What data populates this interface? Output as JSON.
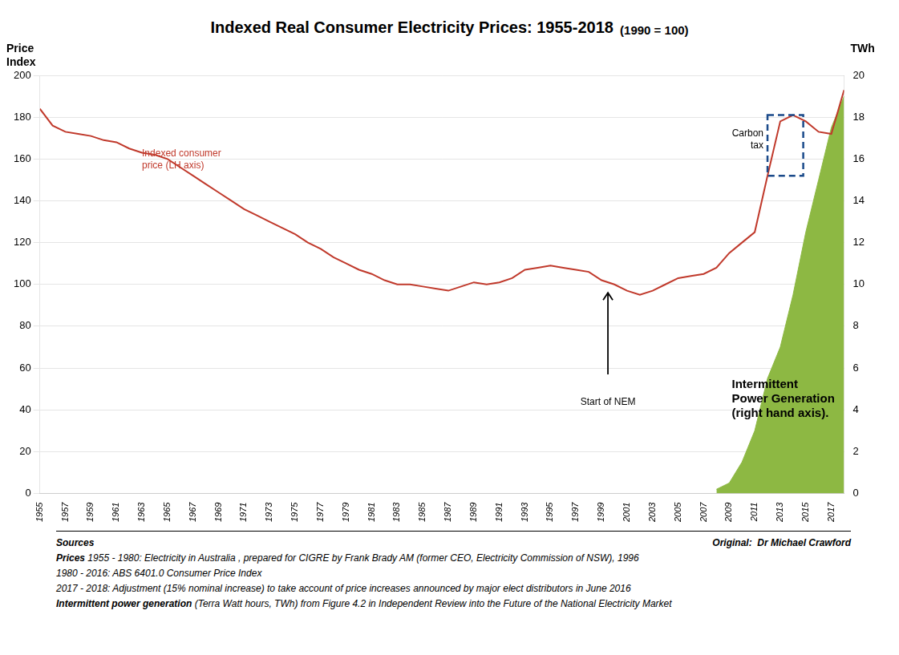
{
  "chart_data": {
    "type": "line",
    "title": "Indexed Real Consumer Electricity Prices: 1955-2018",
    "subtitle": " (1990 = 100)",
    "ylabel": "Price\nIndex",
    "y2label": "TWh",
    "xlim": [
      1955,
      2018
    ],
    "xticks": [
      1955,
      1957,
      1959,
      1961,
      1963,
      1965,
      1967,
      1969,
      1971,
      1973,
      1975,
      1977,
      1979,
      1981,
      1983,
      1985,
      1987,
      1989,
      1991,
      1993,
      1995,
      1997,
      1999,
      2001,
      2003,
      2005,
      2007,
      2009,
      2011,
      2013,
      2015,
      2017
    ],
    "ylim": [
      0,
      200
    ],
    "yticks": [
      0,
      20,
      40,
      60,
      80,
      100,
      120,
      140,
      160,
      180,
      200
    ],
    "y2lim": [
      0,
      20
    ],
    "y2ticks": [
      0,
      2,
      4,
      6,
      8,
      10,
      12,
      14,
      16,
      18,
      20
    ],
    "grid": "y",
    "series": [
      {
        "type": "line",
        "color": "#c0392b",
        "x": [
          1955,
          1956,
          1957,
          1958,
          1959,
          1960,
          1961,
          1962,
          1963,
          1964,
          1965,
          1966,
          1967,
          1968,
          1969,
          1970,
          1971,
          1972,
          1973,
          1974,
          1975,
          1976,
          1977,
          1978,
          1979,
          1980,
          1981,
          1982,
          1983,
          1984,
          1985,
          1986,
          1987,
          1988,
          1989,
          1990,
          1991,
          1992,
          1993,
          1994,
          1995,
          1996,
          1997,
          1998,
          1999,
          2000,
          2001,
          2002,
          2003,
          2004,
          2005,
          2006,
          2007,
          2008,
          2009,
          2010,
          2011,
          2012,
          2013,
          2014,
          2015,
          2016,
          2017,
          2018
        ],
        "values": [
          184,
          176,
          173,
          172,
          171,
          169,
          168,
          165,
          163,
          162,
          160,
          156,
          152,
          148,
          144,
          140,
          136,
          133,
          130,
          127,
          124,
          120,
          117,
          113,
          110,
          107,
          105,
          102,
          100,
          100,
          99,
          98,
          97,
          99,
          101,
          100,
          101,
          103,
          107,
          108,
          109,
          108,
          107,
          106,
          102,
          100,
          97,
          95,
          97,
          100,
          103,
          104,
          105,
          108,
          115,
          120,
          125,
          152,
          178,
          181,
          178,
          173,
          172,
          193
        ]
      },
      {
        "type": "area",
        "axis": "y2",
        "color": "#8db843",
        "x": [
          2008,
          2009,
          2010,
          2011,
          2012,
          2013,
          2014,
          2015,
          2016,
          2017,
          2018
        ],
        "values": [
          0.2,
          0.5,
          1.5,
          3.0,
          5.5,
          7.0,
          9.5,
          12.5,
          15.0,
          17.5,
          19.0
        ]
      }
    ],
    "annotations": [
      {
        "text": "Indexed consumer\nprice (LH axis)",
        "x": 1963,
        "y": 165,
        "color": "#c0392b"
      },
      {
        "text": "Start of NEM",
        "x": 1999.5,
        "y": 46,
        "arrow": [
          57,
          96
        ]
      },
      {
        "text": "Intermittent\nPower Generation\n(right hand axis).",
        "x": 2009.2,
        "y": 55,
        "bold": true
      }
    ],
    "box": {
      "text": "Carbon\ntax",
      "x": [
        2012,
        2014.8
      ],
      "y": [
        152,
        181
      ],
      "color": "#1a4a8a",
      "line_style": "dashed"
    },
    "footer": [
      {
        "bold": "Sources",
        "credit": "Original:  Dr Michael Crawford"
      },
      {
        "bold": "Prices",
        "text": " 1955 - 1980: Electricity in Australia , prepared for CIGRE by Frank Brady AM (former CEO, Electricity Commission of NSW), 1996"
      },
      {
        "text": "1980 - 2016: ABS 6401.0 Consumer Price Index"
      },
      {
        "text": "2017 - 2018: Adjustment (15% nominal increase) to take account of price increases announced by major elect distributors in June 2016"
      },
      {
        "bold": "Intermittent power generation",
        "text": " (Terra Watt hours, TWh) from Figure 4.2 in Independent Review into the Future of the National Electricity Market"
      }
    ]
  }
}
